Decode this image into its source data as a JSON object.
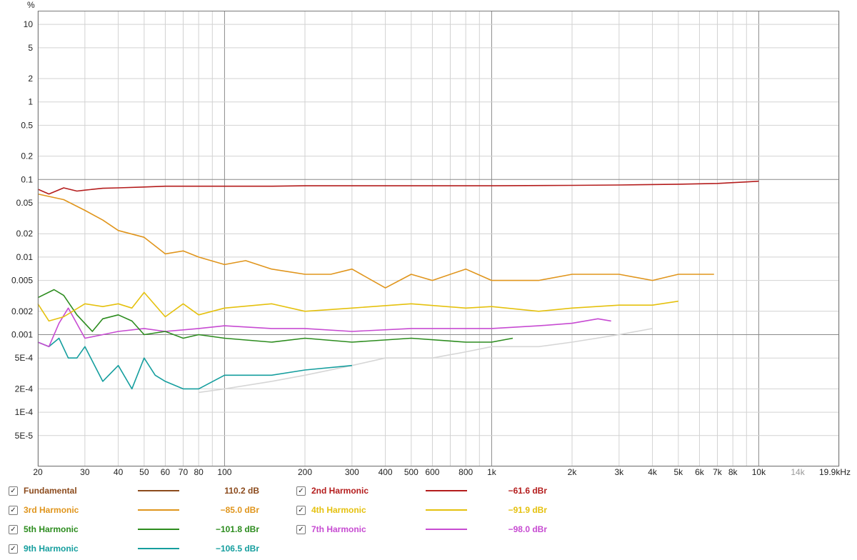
{
  "chart_data": {
    "type": "line",
    "xscale": "log",
    "yscale": "log",
    "xlim": [
      20,
      20000
    ],
    "ylim": [
      2e-05,
      15
    ],
    "ylabel": "%",
    "xtick_labels": [
      "20",
      "30",
      "40",
      "50",
      "60",
      "70",
      "80",
      "100",
      "200",
      "300",
      "400",
      "500",
      "600",
      "800",
      "1k",
      "2k",
      "3k",
      "4k",
      "5k",
      "6k",
      "7k",
      "8k",
      "10k",
      "14k",
      "19.9kHz"
    ],
    "xtick_values": [
      20,
      30,
      40,
      50,
      60,
      70,
      80,
      100,
      200,
      300,
      400,
      500,
      600,
      800,
      1000,
      2000,
      3000,
      4000,
      5000,
      6000,
      7000,
      8000,
      10000,
      14000,
      19900
    ],
    "ytick_labels": [
      "10",
      "5",
      "2",
      "1",
      "0.5",
      "0.2",
      "0.1",
      "0.05",
      "0.02",
      "0.01",
      "0.005",
      "0.002",
      "0.001",
      "5E-4",
      "2E-4",
      "1E-4",
      "5E-5"
    ],
    "ytick_values": [
      10,
      5,
      2,
      1,
      0.5,
      0.2,
      0.1,
      0.05,
      0.02,
      0.01,
      0.005,
      0.002,
      0.001,
      0.0005,
      0.0002,
      0.0001,
      5e-05
    ],
    "grid": true,
    "series": [
      {
        "name": "2nd Harmonic",
        "color": "#b41c1c",
        "x": [
          20,
          22,
          25,
          28,
          30,
          35,
          40,
          50,
          60,
          80,
          100,
          150,
          200,
          300,
          500,
          800,
          1000,
          2000,
          3000,
          5000,
          7000,
          9000,
          10000
        ],
        "y": [
          0.075,
          0.065,
          0.078,
          0.071,
          0.073,
          0.077,
          0.078,
          0.08,
          0.082,
          0.082,
          0.082,
          0.082,
          0.083,
          0.083,
          0.083,
          0.083,
          0.083,
          0.084,
          0.085,
          0.087,
          0.089,
          0.093,
          0.095
        ]
      },
      {
        "name": "3rd Harmonic",
        "color": "#e0951c",
        "x": [
          20,
          25,
          30,
          35,
          40,
          50,
          60,
          70,
          80,
          100,
          120,
          150,
          200,
          250,
          300,
          400,
          500,
          600,
          800,
          1000,
          1500,
          2000,
          3000,
          4000,
          5000,
          6000,
          6800
        ],
        "y": [
          0.065,
          0.055,
          0.04,
          0.03,
          0.022,
          0.018,
          0.011,
          0.012,
          0.01,
          0.008,
          0.009,
          0.007,
          0.006,
          0.006,
          0.007,
          0.004,
          0.006,
          0.005,
          0.007,
          0.005,
          0.005,
          0.006,
          0.006,
          0.005,
          0.006,
          0.006,
          0.006
        ]
      },
      {
        "name": "4th Harmonic",
        "color": "#e5c10e",
        "x": [
          20,
          22,
          25,
          30,
          35,
          40,
          45,
          50,
          60,
          70,
          80,
          100,
          150,
          200,
          300,
          500,
          800,
          1000,
          1500,
          2000,
          3000,
          4000,
          5000
        ],
        "y": [
          0.0025,
          0.0015,
          0.0017,
          0.0025,
          0.0023,
          0.0025,
          0.0022,
          0.0035,
          0.0017,
          0.0025,
          0.0018,
          0.0022,
          0.0025,
          0.002,
          0.0022,
          0.0025,
          0.0022,
          0.0023,
          0.002,
          0.0022,
          0.0024,
          0.0024,
          0.0027
        ]
      },
      {
        "name": "5th Harmonic",
        "color": "#2c8c1e",
        "x": [
          20,
          23,
          25,
          28,
          32,
          35,
          40,
          45,
          50,
          60,
          70,
          80,
          100,
          150,
          200,
          300,
          500,
          800,
          1000,
          1200
        ],
        "y": [
          0.003,
          0.0038,
          0.0032,
          0.0018,
          0.0011,
          0.0016,
          0.0018,
          0.0015,
          0.001,
          0.0011,
          0.0009,
          0.001,
          0.0009,
          0.0008,
          0.0009,
          0.0008,
          0.0009,
          0.0008,
          0.0008,
          0.0009
        ]
      },
      {
        "name": "7th Harmonic",
        "color": "#c74bd2",
        "x": [
          20,
          22,
          24,
          26,
          30,
          35,
          40,
          50,
          60,
          80,
          100,
          150,
          200,
          300,
          500,
          800,
          1000,
          1500,
          2000,
          2500,
          2800
        ],
        "y": [
          0.0008,
          0.0007,
          0.0014,
          0.0022,
          0.0009,
          0.001,
          0.0011,
          0.0012,
          0.0011,
          0.0012,
          0.0013,
          0.0012,
          0.0012,
          0.0011,
          0.0012,
          0.0012,
          0.0012,
          0.0013,
          0.0014,
          0.0016,
          0.0015
        ]
      },
      {
        "name": "9th Harmonic",
        "color": "#159e9e",
        "x": [
          20,
          22,
          24,
          26,
          28,
          30,
          35,
          40,
          45,
          50,
          55,
          60,
          70,
          80,
          100,
          150,
          200,
          300
        ],
        "y": [
          0.0008,
          0.0007,
          0.0009,
          0.0005,
          0.0005,
          0.0007,
          0.00025,
          0.0004,
          0.0002,
          0.0005,
          0.0003,
          0.00025,
          0.0002,
          0.0002,
          0.0003,
          0.0003,
          0.00035,
          0.0004
        ]
      },
      {
        "name": "",
        "color": "#d6d6d6",
        "x": [
          80,
          100,
          150,
          200,
          300,
          400,
          600,
          800,
          1000,
          1500,
          2000,
          3000,
          4000
        ],
        "y": [
          0.00018,
          0.0002,
          0.00025,
          0.0003,
          0.0004,
          0.0005,
          0.0005,
          0.0006,
          0.0007,
          0.0007,
          0.0008,
          0.001,
          0.0012
        ]
      }
    ]
  },
  "legend": {
    "fundamental": {
      "label": "Fundamental",
      "value": "110.2 dB",
      "check": "✓",
      "color": "#8b4a1c"
    },
    "h2": {
      "label": "2nd Harmonic",
      "value": "−61.6 dBr",
      "check": "✓",
      "color": "#b41c1c"
    },
    "h3": {
      "label": "3rd Harmonic",
      "value": "−85.0 dBr",
      "check": "✓",
      "color": "#e0951c"
    },
    "h4": {
      "label": "4th Harmonic",
      "value": "−91.9 dBr",
      "check": "✓",
      "color": "#e5c10e"
    },
    "h5": {
      "label": "5th Harmonic",
      "value": "−101.8 dBr",
      "check": "✓",
      "color": "#2c8c1e"
    },
    "h7": {
      "label": "7th Harmonic",
      "value": "−98.0 dBr",
      "check": "✓",
      "color": "#c74bd2"
    },
    "h9": {
      "label": "9th Harmonic",
      "value": "−106.5 dBr",
      "check": "✓",
      "color": "#159e9e"
    }
  }
}
